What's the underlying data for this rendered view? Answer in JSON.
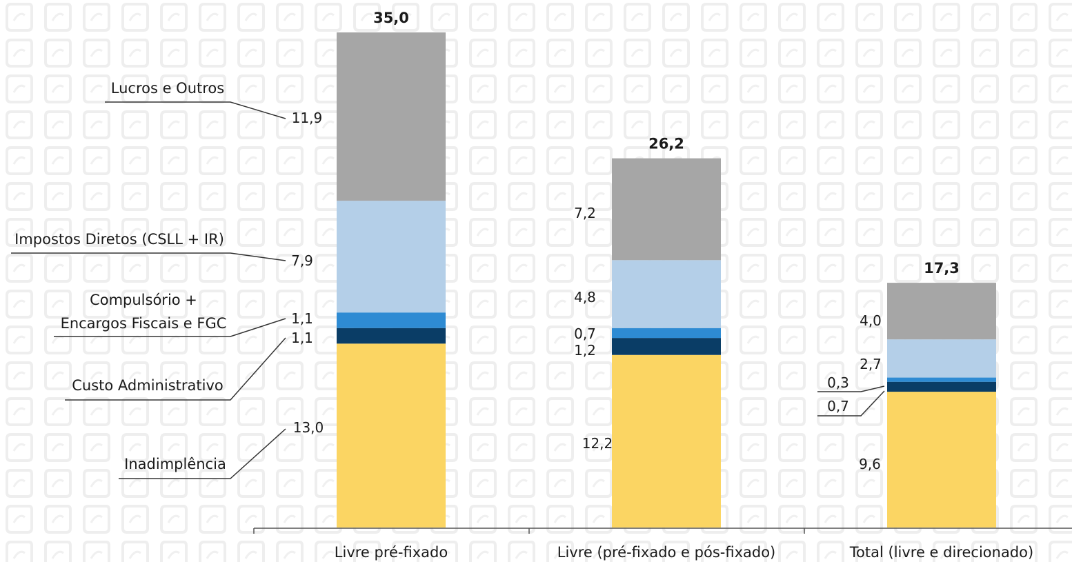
{
  "chart_data": {
    "type": "bar",
    "stacked": true,
    "categories": [
      "Livre pré-fixado",
      "Livre (pré-fixado e pós-fixado)",
      "Total (livre e direcionado)"
    ],
    "series": [
      {
        "name": "Inadimplência",
        "color": "#fbd563",
        "values": [
          13.0,
          12.2,
          9.6
        ],
        "labels": [
          "13,0",
          "12,2",
          "9,6"
        ]
      },
      {
        "name": "Custo Administrativo",
        "color": "#0a3d66",
        "values": [
          1.1,
          1.2,
          0.7
        ],
        "labels": [
          "1,1",
          "1,2",
          "0,7"
        ]
      },
      {
        "name": "Compulsório + Encargos Fiscais e FGC",
        "name_lines": [
          "Compulsório +",
          "Encargos Fiscais e FGC"
        ],
        "color": "#2e8bd3",
        "values": [
          1.1,
          0.7,
          0.3
        ],
        "labels": [
          "1,1",
          "0,7",
          "0,3"
        ]
      },
      {
        "name": "Impostos Diretos (CSLL + IR)",
        "color": "#b4cfe8",
        "values": [
          7.9,
          4.8,
          2.7
        ],
        "labels": [
          "7,9",
          "4,8",
          "2,7"
        ]
      },
      {
        "name": "Lucros e Outros",
        "color": "#a6a6a6",
        "values": [
          11.9,
          7.2,
          4.0
        ],
        "labels": [
          "11,9",
          "7,2",
          "4,0"
        ]
      }
    ],
    "totals": [
      35.0,
      26.2,
      17.3
    ],
    "total_labels": [
      "35,0",
      "26,2",
      "17,3"
    ],
    "ylim": [
      0,
      35.0
    ],
    "legend": "left, leader lines",
    "grid": false,
    "background_pattern": "light gray rounded-square watermark"
  }
}
